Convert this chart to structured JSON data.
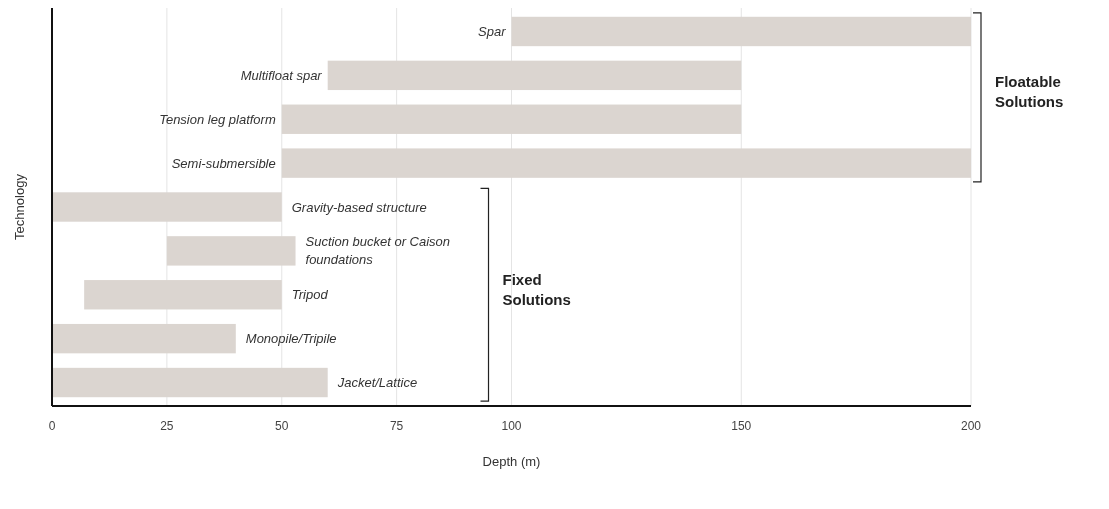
{
  "chart_data": {
    "type": "bar",
    "orientation": "horizontal",
    "xlabel": "Depth (m)",
    "ylabel": "Technology",
    "categories": [
      "Spar",
      "Multifloat spar",
      "Tension leg platform",
      "Semi-submersible",
      "Gravity-based structure",
      "Suction bucket or Caison foundations",
      "Tripod",
      "Monopile/Tripile",
      "Jacket/Lattice"
    ],
    "base": [
      100,
      60,
      50,
      50,
      0,
      25,
      7,
      0,
      0
    ],
    "values": [
      100,
      90,
      100,
      150,
      50,
      28,
      43,
      40,
      60
    ],
    "color": "#dbd5d0",
    "xlim": [
      0,
      200
    ],
    "xticks": [
      0,
      25,
      50,
      75,
      100,
      150,
      200
    ],
    "grid": "x",
    "annotations": [
      "Floatable Solutions",
      "Fixed Solutions"
    ]
  }
}
